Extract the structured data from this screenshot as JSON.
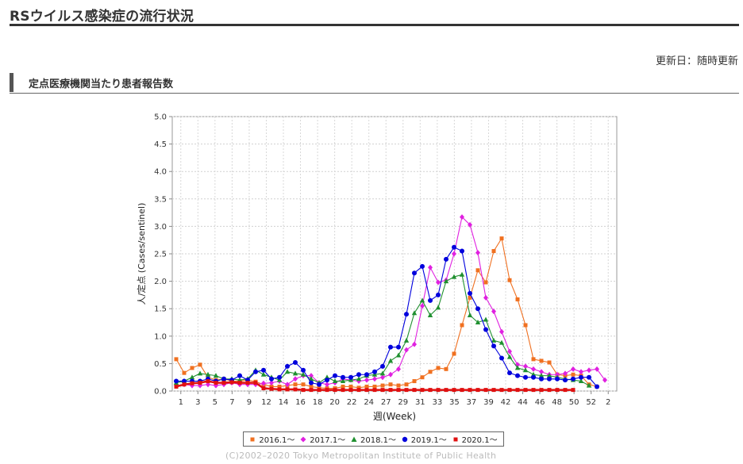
{
  "header": {
    "title": "RSウイルス感染症の流行状況",
    "updated": "更新日：随時更新"
  },
  "section": {
    "title": "定点医療機関当たり患者報告数"
  },
  "footer": {
    "copyright": "(C)2002–2020 Tokyo Metropolitan Institute of Public Health"
  },
  "chart_data": {
    "type": "line",
    "title": "",
    "xlabel": "週(Week)",
    "ylabel": "人/定点 (Cases/sentinel)",
    "ylim": [
      0,
      5.0
    ],
    "yticks": [
      "0.0",
      "0.5",
      "1.0",
      "1.5",
      "2.0",
      "2.5",
      "3.0",
      "3.5",
      "4.0",
      "4.5",
      "5.0"
    ],
    "xticks": [
      "1",
      "3",
      "5",
      "7",
      "9",
      "12",
      "14",
      "16",
      "18",
      "20",
      "22",
      "24",
      "27",
      "29",
      "31",
      "33",
      "35",
      "37",
      "39",
      "42",
      "44",
      "46",
      "48",
      "50",
      "52",
      "2"
    ],
    "grid": true,
    "legend_position": "bottom",
    "series": [
      {
        "name": "2016.1～",
        "color": "#f07020",
        "marker": "square",
        "values": [
          0.58,
          0.33,
          0.42,
          0.48,
          0.25,
          0.2,
          0.22,
          0.18,
          0.18,
          0.2,
          0.17,
          0.12,
          0.08,
          0.08,
          0.1,
          0.12,
          0.12,
          0.08,
          0.06,
          0.05,
          0.05,
          0.08,
          0.08,
          0.06,
          0.08,
          0.08,
          0.1,
          0.12,
          0.1,
          0.12,
          0.18,
          0.25,
          0.35,
          0.42,
          0.4,
          0.68,
          1.2,
          1.7,
          2.2,
          1.98,
          2.55,
          2.78,
          2.02,
          1.67,
          1.2,
          0.58,
          0.55,
          0.52,
          0.3,
          0.28,
          0.3,
          0.28,
          0.12,
          0.08
        ]
      },
      {
        "name": "2017.1～",
        "color": "#e020e0",
        "marker": "diamond",
        "values": [
          0.1,
          0.12,
          0.1,
          0.1,
          0.12,
          0.1,
          0.12,
          0.15,
          0.12,
          0.12,
          0.12,
          0.14,
          0.15,
          0.18,
          0.12,
          0.22,
          0.28,
          0.28,
          0.15,
          0.12,
          0.15,
          0.22,
          0.2,
          0.18,
          0.2,
          0.22,
          0.25,
          0.3,
          0.4,
          0.75,
          0.85,
          1.55,
          2.25,
          1.98,
          2.02,
          2.5,
          3.17,
          3.03,
          2.52,
          1.7,
          1.45,
          1.08,
          0.72,
          0.48,
          0.45,
          0.4,
          0.35,
          0.3,
          0.3,
          0.32,
          0.4,
          0.35,
          0.38,
          0.4,
          0.2
        ]
      },
      {
        "name": "2018.1～",
        "color": "#209030",
        "marker": "triangle",
        "values": [
          0.15,
          0.18,
          0.25,
          0.32,
          0.3,
          0.28,
          0.22,
          0.22,
          0.2,
          0.22,
          0.38,
          0.3,
          0.25,
          0.2,
          0.35,
          0.32,
          0.3,
          0.22,
          0.15,
          0.25,
          0.18,
          0.18,
          0.2,
          0.22,
          0.28,
          0.3,
          0.32,
          0.55,
          0.65,
          0.92,
          1.42,
          1.65,
          1.38,
          1.52,
          2.0,
          2.08,
          2.12,
          1.38,
          1.25,
          1.3,
          0.92,
          0.88,
          0.62,
          0.42,
          0.38,
          0.3,
          0.28,
          0.28,
          0.25,
          0.22,
          0.2,
          0.18,
          0.1
        ]
      },
      {
        "name": "2019.1～",
        "color": "#0000dd",
        "marker": "circle",
        "values": [
          0.18,
          0.18,
          0.18,
          0.18,
          0.22,
          0.18,
          0.22,
          0.2,
          0.28,
          0.2,
          0.35,
          0.38,
          0.22,
          0.25,
          0.45,
          0.52,
          0.38,
          0.15,
          0.12,
          0.2,
          0.28,
          0.25,
          0.25,
          0.3,
          0.3,
          0.35,
          0.45,
          0.8,
          0.8,
          1.4,
          2.15,
          2.27,
          1.65,
          1.75,
          2.4,
          2.62,
          2.55,
          1.78,
          1.5,
          1.12,
          0.82,
          0.6,
          0.33,
          0.28,
          0.25,
          0.25,
          0.22,
          0.22,
          0.22,
          0.2,
          0.22,
          0.25,
          0.25,
          0.08
        ]
      },
      {
        "name": "2020.1～",
        "color": "#e01010",
        "marker": "square",
        "values": [
          0.08,
          0.12,
          0.14,
          0.15,
          0.18,
          0.15,
          0.15,
          0.16,
          0.15,
          0.15,
          0.15,
          0.05,
          0.04,
          0.03,
          0.03,
          0.03,
          0.02,
          0.02,
          0.02,
          0.02,
          0.02,
          0.02,
          0.02,
          0.02,
          0.02,
          0.02,
          0.02,
          0.02,
          0.02,
          0.02,
          0.02,
          0.02,
          0.02,
          0.02,
          0.02,
          0.02,
          0.02,
          0.02,
          0.02,
          0.02,
          0.02,
          0.02,
          0.02,
          0.02,
          0.02,
          0.02,
          0.02,
          0.02,
          0.02,
          0.02,
          0.02
        ]
      }
    ]
  }
}
